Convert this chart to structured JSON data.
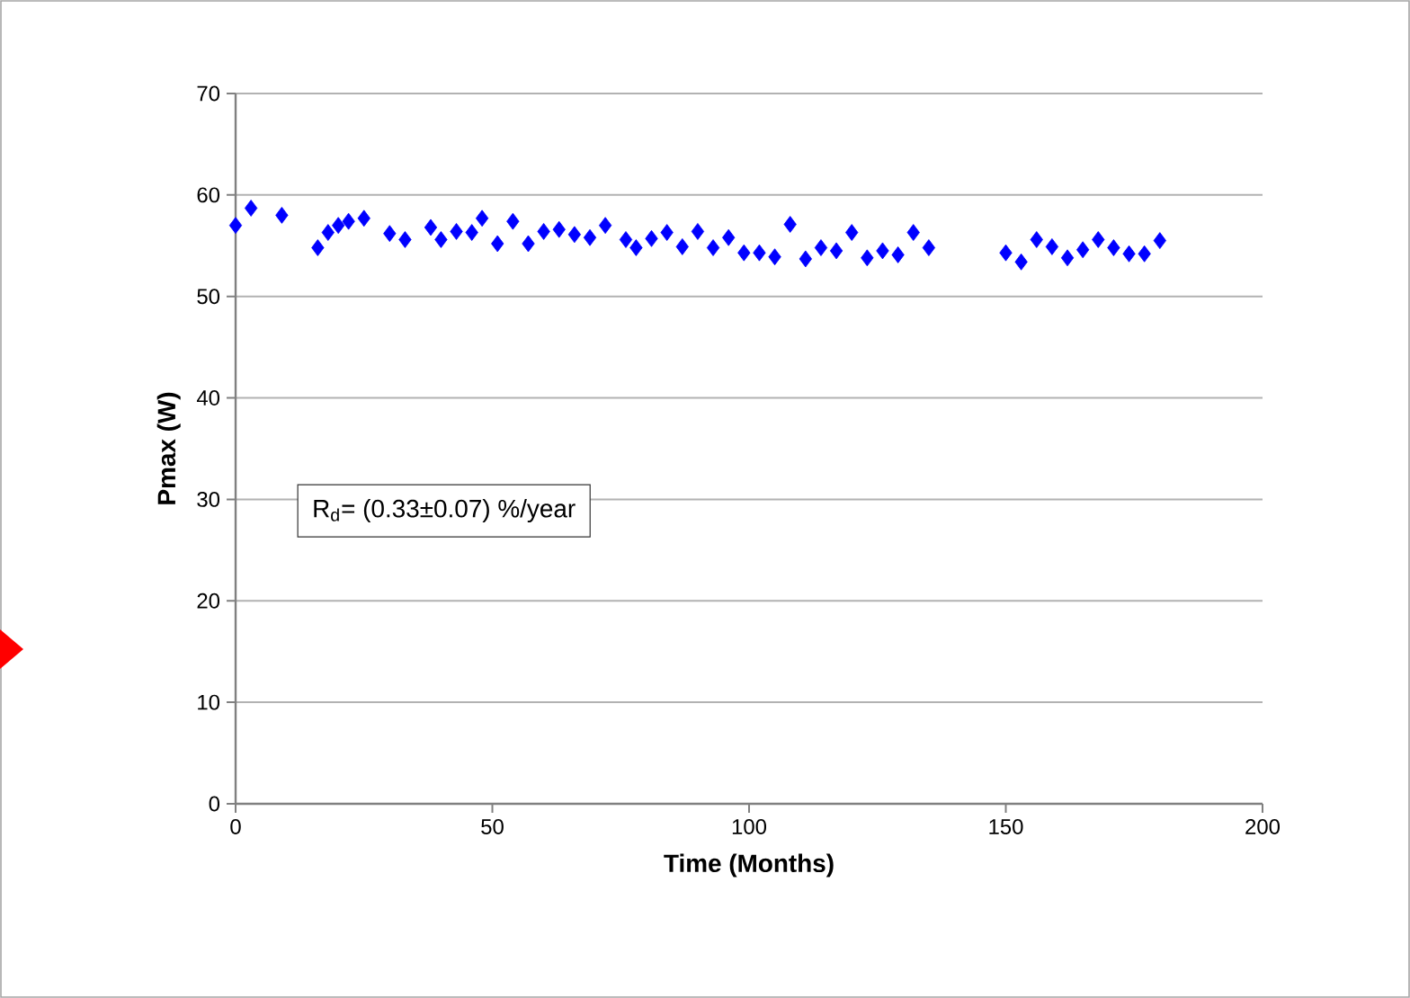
{
  "chart_data": {
    "type": "scatter",
    "xlabel": "Time (Months)",
    "ylabel": "Pmax (W)",
    "annotations": [
      "R$_{d}$= (0.33±0.07) %/year"
    ],
    "xlim": [
      0,
      200
    ],
    "xticks": [
      0,
      50,
      100,
      150,
      200
    ],
    "ylim": [
      0,
      70
    ],
    "yticks": [
      0,
      10,
      20,
      30,
      40,
      50,
      60,
      70
    ],
    "grid": "y",
    "marker": "diamond",
    "series": [
      {
        "color": "#0000ff",
        "x": [
          0,
          3,
          9,
          16,
          18,
          20,
          22,
          25,
          30,
          33,
          38,
          40,
          43,
          46,
          48,
          51,
          54,
          57,
          60,
          63,
          66,
          69,
          72,
          76,
          78,
          81,
          84,
          87,
          90,
          93,
          96,
          99,
          102,
          105,
          108,
          111,
          114,
          117,
          120,
          123,
          126,
          129,
          132,
          135,
          150,
          153,
          156,
          159,
          162,
          165,
          168,
          171,
          174,
          177,
          180
        ],
        "values": [
          57,
          58.7,
          58,
          54.8,
          56.3,
          57,
          57.4,
          57.7,
          56.2,
          55.6,
          56.8,
          55.6,
          56.4,
          56.3,
          57.7,
          55.2,
          57.4,
          55.2,
          56.4,
          56.6,
          56.1,
          55.8,
          57,
          55.6,
          54.8,
          55.7,
          56.3,
          54.9,
          56.4,
          54.8,
          55.8,
          54.3,
          54.3,
          53.9,
          57.1,
          53.7,
          54.8,
          54.5,
          56.3,
          53.8,
          54.5,
          54.1,
          56.3,
          54.8,
          54.3,
          53.4,
          55.6,
          54.9,
          53.8,
          54.6,
          55.6,
          54.8,
          54.2,
          54.2,
          55.5
        ]
      }
    ]
  }
}
